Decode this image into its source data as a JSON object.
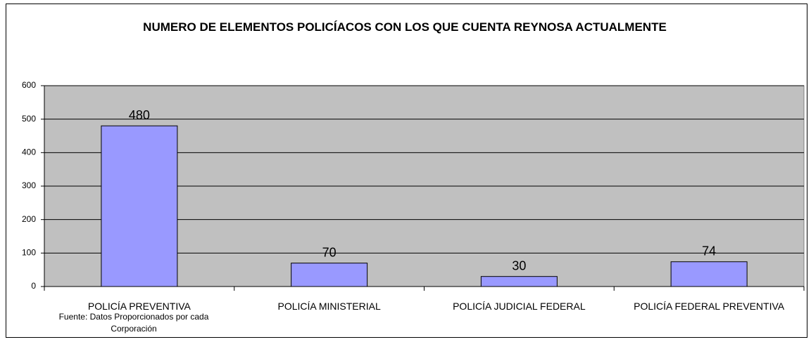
{
  "chart_data": {
    "type": "bar",
    "title": "NUMERO DE ELEMENTOS POLICÍACOS CON LOS QUE CUENTA REYNOSA ACTUALMENTE",
    "categories": [
      "POLICÍA PREVENTIVA",
      "POLICÍA MINISTERIAL",
      "POLICÍA JUDICIAL FEDERAL",
      "POLICÍA FEDERAL PREVENTIVA"
    ],
    "values": [
      480,
      70,
      30,
      74
    ],
    "color": "#9999ff",
    "ylim": [
      0,
      600
    ],
    "yticks": [
      0,
      100,
      200,
      300,
      400,
      500,
      600
    ],
    "grid": true,
    "note": "Fuente: Datos Proporcionados por cada Corporación"
  }
}
